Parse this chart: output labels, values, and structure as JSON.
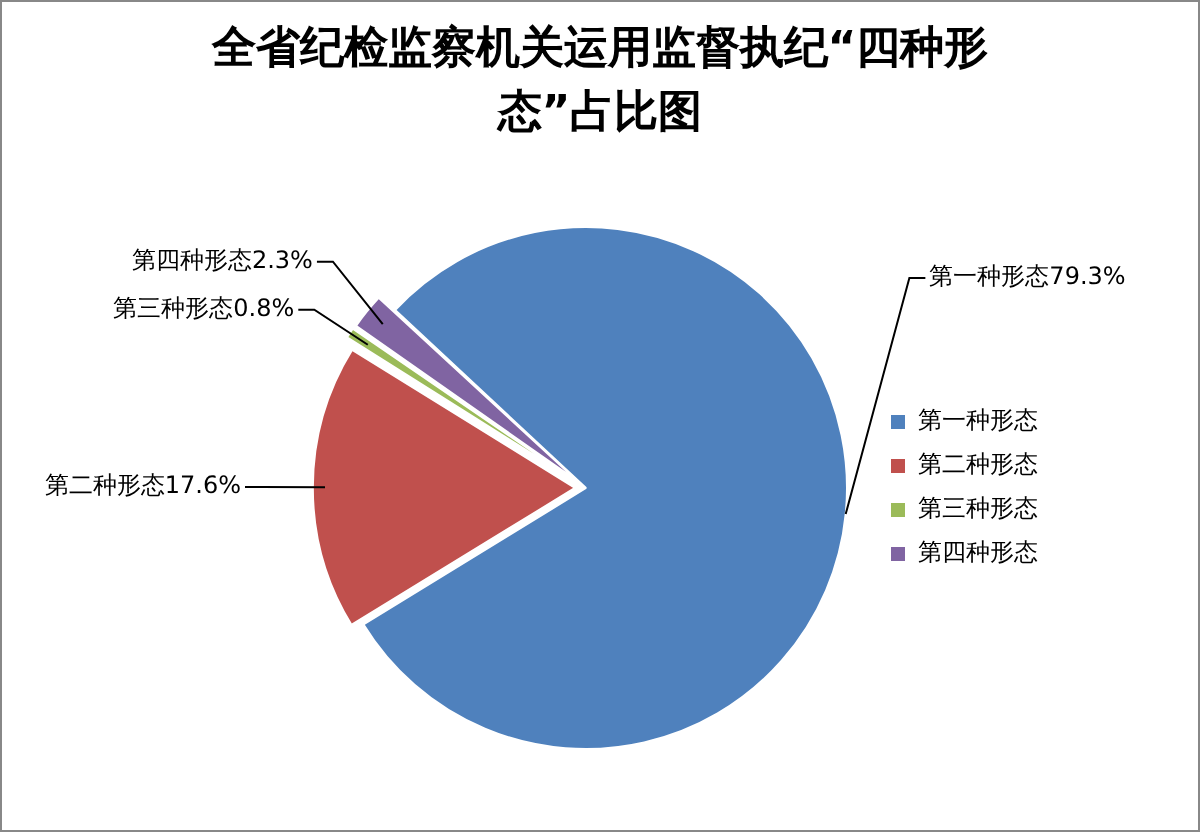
{
  "chart_data": {
    "type": "pie",
    "title": "全省纪检监察机关运用监督执纪“四种形态”占比图",
    "categories": [
      "第一种形态",
      "第二种形态",
      "第三种形态",
      "第四种形态"
    ],
    "values": [
      79.3,
      17.6,
      0.8,
      2.3
    ],
    "value_labels": [
      "79.3%",
      "17.6%",
      "0.8%",
      "2.3%"
    ],
    "colors": [
      "#4f81bd",
      "#c0504d",
      "#9bbb59",
      "#8064a2"
    ],
    "legend": "right"
  }
}
